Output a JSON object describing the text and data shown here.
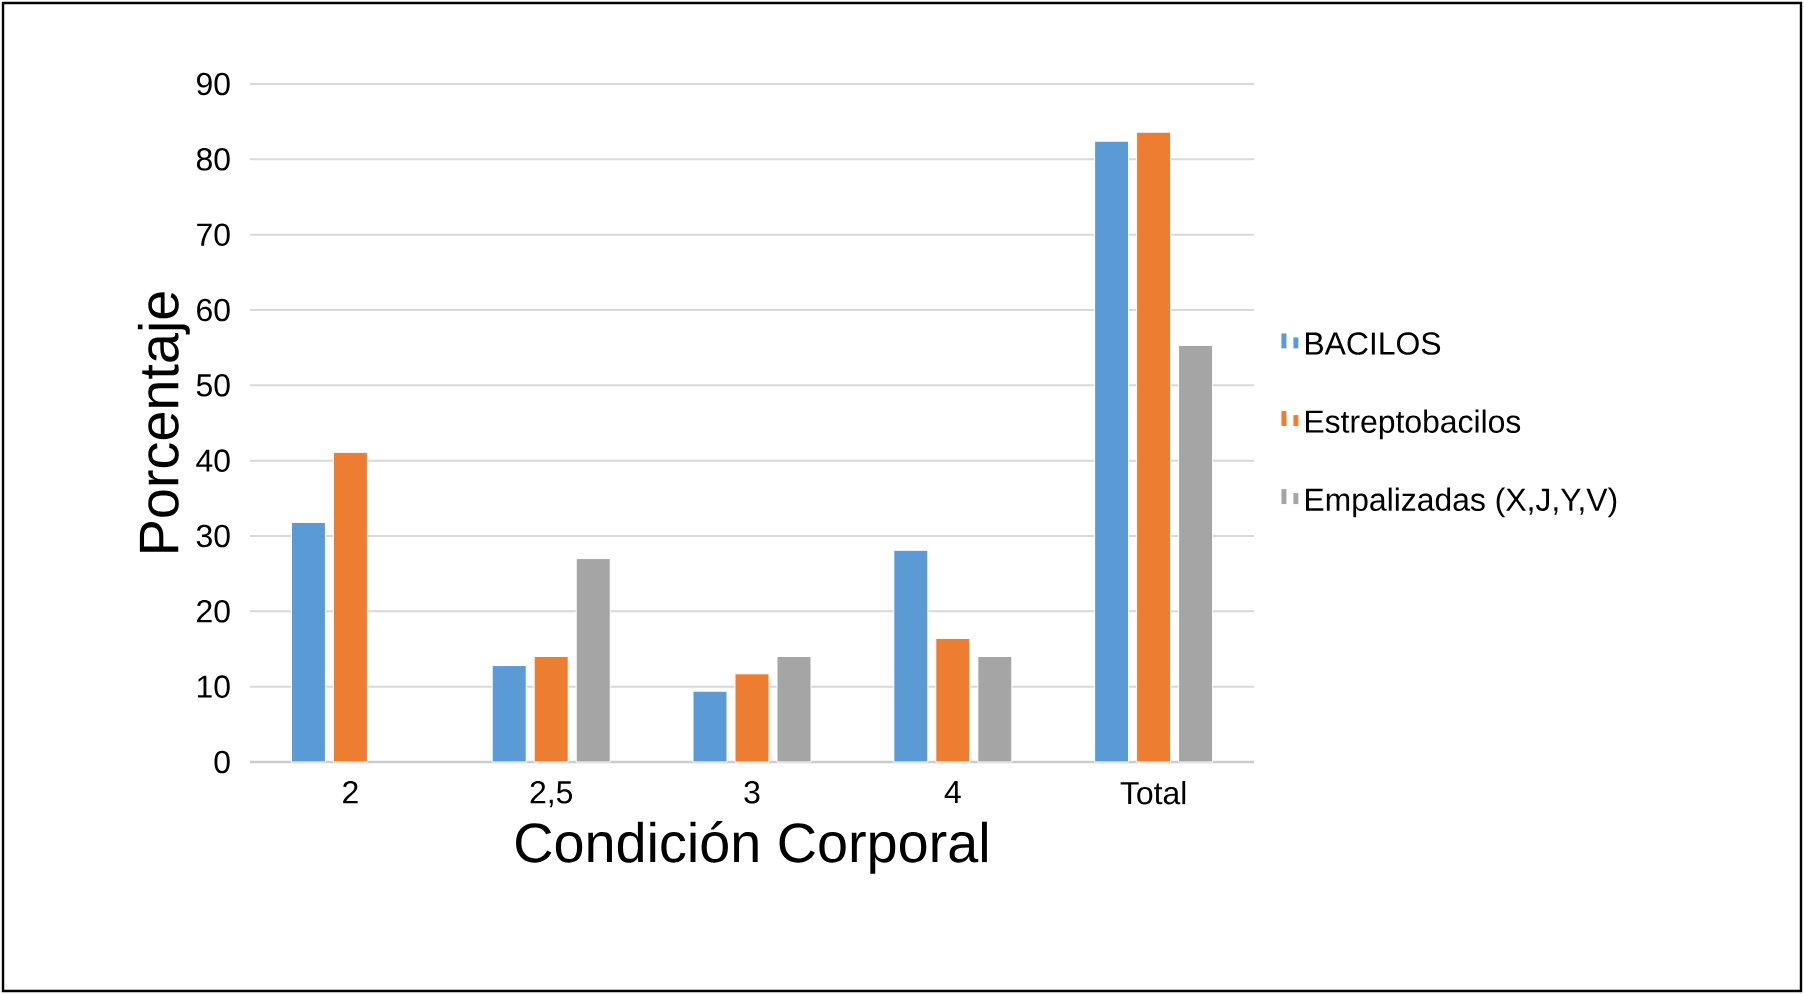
{
  "chart_data": {
    "type": "bar",
    "xlabel": "Condición Corporal",
    "ylabel": "Porcentaje",
    "categories": [
      "2",
      "2,5",
      "3",
      "4",
      "Total"
    ],
    "series": [
      {
        "name": "BACILOS",
        "color": "#5b9bd5",
        "values": [
          31.8,
          12.8,
          9.4,
          28.1,
          82.4
        ]
      },
      {
        "name": "Estreptobacilos",
        "color": "#ed7d31",
        "values": [
          41.1,
          14.0,
          11.7,
          16.4,
          83.6
        ]
      },
      {
        "name": "Empalizadas (X,J,Y,V)",
        "color": "#a5a5a5",
        "values": [
          null,
          27.0,
          14.0,
          14.0,
          55.3
        ]
      }
    ],
    "ylim": [
      0,
      90
    ],
    "yticks": [
      0,
      10,
      20,
      30,
      40,
      50,
      60,
      70,
      80,
      90
    ],
    "grid": "y",
    "legend": "right"
  }
}
